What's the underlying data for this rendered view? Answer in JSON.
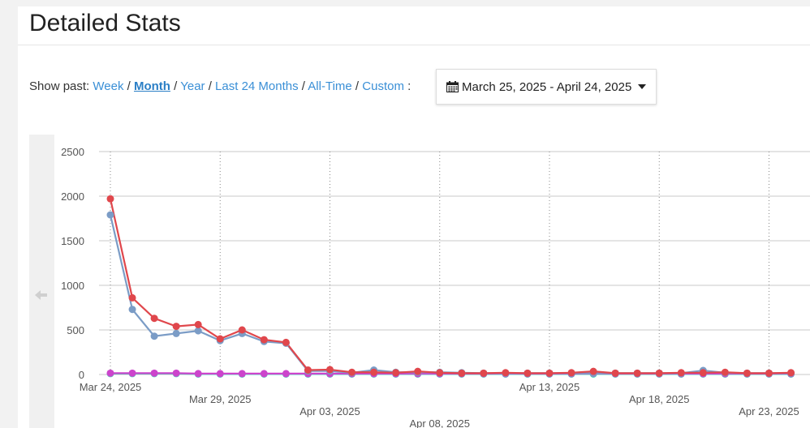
{
  "page": {
    "title": "Detailed Stats",
    "show_past_label": "Show past:",
    "filters": [
      {
        "label": "Week",
        "active": false
      },
      {
        "label": "Month",
        "active": true
      },
      {
        "label": "Year",
        "active": false
      },
      {
        "label": "Last 24 Months",
        "active": false
      },
      {
        "label": "All-Time",
        "active": false
      },
      {
        "label": "Custom",
        "active": false
      }
    ],
    "filter_separator": "/",
    "filter_end": ":",
    "date_range": "March 25, 2025 - April 24, 2025",
    "icons": [
      "calendar-icon",
      "caret-down-icon",
      "arrow-left-icon"
    ],
    "colors": {
      "link": "#3a8fd6"
    }
  },
  "chart_data": {
    "type": "line",
    "x": [
      "Mar 24, 2025",
      "Mar 25, 2025",
      "Mar 26, 2025",
      "Mar 27, 2025",
      "Mar 28, 2025",
      "Mar 29, 2025",
      "Mar 30, 2025",
      "Mar 31, 2025",
      "Apr 01, 2025",
      "Apr 02, 2025",
      "Apr 03, 2025",
      "Apr 04, 2025",
      "Apr 05, 2025",
      "Apr 06, 2025",
      "Apr 07, 2025",
      "Apr 08, 2025",
      "Apr 09, 2025",
      "Apr 10, 2025",
      "Apr 11, 2025",
      "Apr 12, 2025",
      "Apr 13, 2025",
      "Apr 14, 2025",
      "Apr 15, 2025",
      "Apr 16, 2025",
      "Apr 17, 2025",
      "Apr 18, 2025",
      "Apr 19, 2025",
      "Apr 20, 2025",
      "Apr 21, 2025",
      "Apr 22, 2025",
      "Apr 23, 2025",
      "Apr 24, 2025"
    ],
    "x_tick_labels": [
      "Mar 24, 2025",
      "Mar 29, 2025",
      "Apr 03, 2025",
      "Apr 08, 2025",
      "Apr 13, 2025",
      "Apr 18, 2025",
      "Apr 23, 2025"
    ],
    "ylim": [
      0,
      2500
    ],
    "y_ticks": [
      0,
      500,
      1000,
      1500,
      2000,
      2500
    ],
    "grid": true,
    "series": [
      {
        "color": "#e0474c",
        "values": [
          1970,
          860,
          630,
          540,
          560,
          400,
          500,
          390,
          360,
          50,
          55,
          25,
          25,
          20,
          35,
          20,
          15,
          15,
          20,
          15,
          15,
          20,
          35,
          15,
          15,
          15,
          20,
          20,
          25,
          15,
          15,
          20
        ]
      },
      {
        "color": "#7b9cc6",
        "values": [
          1790,
          730,
          430,
          460,
          490,
          380,
          460,
          370,
          350,
          40,
          40,
          20,
          50,
          25,
          25,
          25,
          20,
          15,
          15,
          15,
          15,
          15,
          20,
          15,
          15,
          15,
          15,
          45,
          20,
          15,
          15,
          15
        ]
      },
      {
        "color": "#cc44cc",
        "values": [
          15,
          15,
          15,
          15,
          10,
          10,
          10,
          10,
          10,
          10,
          10,
          10,
          10,
          10,
          10,
          10,
          10,
          10,
          10,
          10,
          10,
          10,
          15,
          10,
          10,
          10,
          10,
          10,
          10,
          10,
          10,
          10
        ]
      },
      {
        "color": "#44ddbb",
        "values": [
          10,
          10,
          10,
          10,
          5,
          5,
          5,
          5,
          5,
          5,
          5,
          5,
          5,
          5,
          5,
          5,
          5,
          5,
          5,
          5,
          5,
          5,
          5,
          5,
          5,
          5,
          5,
          5,
          5,
          5,
          5,
          5
        ]
      }
    ]
  }
}
